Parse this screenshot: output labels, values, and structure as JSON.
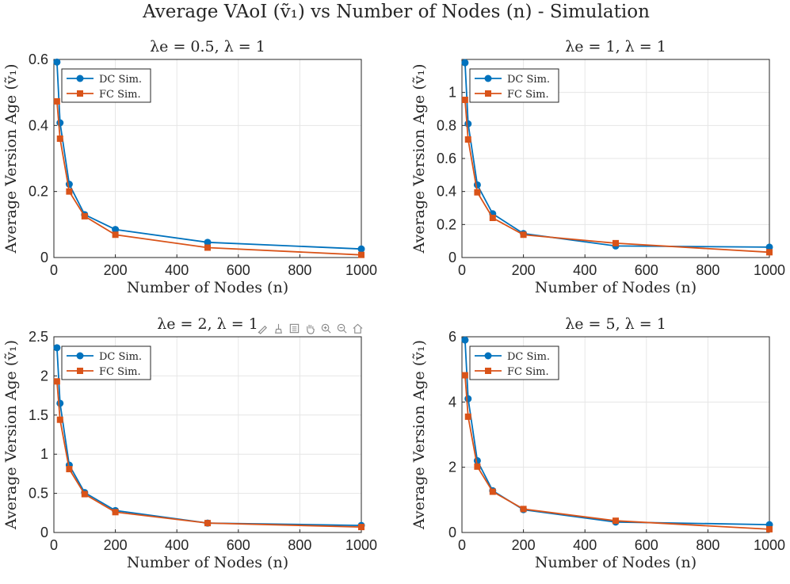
{
  "figure_title": "Average VAoI (ṽ₁) vs Number of Nodes (n) - Simulation",
  "toolbar": {
    "icons": [
      "brush-icon",
      "data-tips-icon",
      "legend-toggle-icon",
      "pan-hand-icon",
      "zoom-in-icon",
      "zoom-out-icon",
      "home-icon"
    ]
  },
  "colors": {
    "dc": "#0072BD",
    "fc": "#D95319",
    "grid": "#e6e6e6",
    "axis": "#262626"
  },
  "chart_data": [
    {
      "type": "line",
      "title": "λe = 0.5, λ = 1",
      "xlabel": "Number of Nodes (n)",
      "ylabel": "Average Version Age (ṽ₁)",
      "xlim": [
        0,
        1000
      ],
      "ylim": [
        0,
        0.6
      ],
      "xticks": [
        "0",
        "200",
        "400",
        "600",
        "800",
        "1000"
      ],
      "yticks": [
        "0",
        "0.2",
        "0.4",
        "0.6"
      ],
      "ytick_values": [
        0,
        0.2,
        0.4,
        0.6
      ],
      "grid": true,
      "legend_position": "top-left",
      "x": [
        10,
        20,
        50,
        100,
        200,
        500,
        1000
      ],
      "series": [
        {
          "name": "DC Sim.",
          "marker": "circle",
          "values": [
            0.592,
            0.408,
            0.222,
            0.13,
            0.085,
            0.046,
            0.026
          ]
        },
        {
          "name": "FC Sim.",
          "marker": "square",
          "values": [
            0.473,
            0.36,
            0.2,
            0.125,
            0.069,
            0.03,
            0.008
          ]
        }
      ]
    },
    {
      "type": "line",
      "title": "λe = 1, λ = 1",
      "xlabel": "Number of Nodes (n)",
      "ylabel": "Average Version Age (ṽ₁)",
      "xlim": [
        0,
        1000
      ],
      "ylim": [
        0,
        1.2
      ],
      "xticks": [
        "0",
        "200",
        "400",
        "600",
        "800",
        "1000"
      ],
      "yticks": [
        "0",
        "0.2",
        "0.4",
        "0.6",
        "0.8",
        "1"
      ],
      "ytick_values": [
        0,
        0.2,
        0.4,
        0.6,
        0.8,
        1.0
      ],
      "grid": true,
      "legend_position": "top-left",
      "x": [
        10,
        20,
        50,
        100,
        200,
        500,
        1000
      ],
      "series": [
        {
          "name": "DC Sim.",
          "marker": "circle",
          "values": [
            1.18,
            0.81,
            0.44,
            0.265,
            0.145,
            0.07,
            0.063
          ]
        },
        {
          "name": "FC Sim.",
          "marker": "square",
          "values": [
            0.955,
            0.715,
            0.395,
            0.24,
            0.138,
            0.087,
            0.032
          ]
        }
      ]
    },
    {
      "type": "line",
      "title": "λe = 2, λ = 1",
      "xlabel": "Number of Nodes (n)",
      "ylabel": "Average Version Age (ṽ₁)",
      "xlim": [
        0,
        1000
      ],
      "ylim": [
        0,
        2.5
      ],
      "xticks": [
        "0",
        "200",
        "400",
        "600",
        "800",
        "1000"
      ],
      "yticks": [
        "0",
        "0.5",
        "1",
        "1.5",
        "2",
        "2.5"
      ],
      "ytick_values": [
        0,
        0.5,
        1.0,
        1.5,
        2.0,
        2.5
      ],
      "grid": true,
      "legend_position": "top-left",
      "x": [
        10,
        20,
        50,
        100,
        200,
        500,
        1000
      ],
      "series": [
        {
          "name": "DC Sim.",
          "marker": "circle",
          "values": [
            2.36,
            1.65,
            0.86,
            0.51,
            0.28,
            0.12,
            0.09
          ]
        },
        {
          "name": "FC Sim.",
          "marker": "square",
          "values": [
            1.93,
            1.44,
            0.81,
            0.49,
            0.26,
            0.12,
            0.07
          ]
        }
      ]
    },
    {
      "type": "line",
      "title": "λe = 5, λ = 1",
      "xlabel": "Number of Nodes (n)",
      "ylabel": "Average Version Age (ṽ₁)",
      "xlim": [
        0,
        1000
      ],
      "ylim": [
        0,
        6
      ],
      "xticks": [
        "0",
        "200",
        "400",
        "600",
        "800",
        "1000"
      ],
      "yticks": [
        "0",
        "2",
        "4",
        "6"
      ],
      "ytick_values": [
        0,
        2,
        4,
        6
      ],
      "grid": true,
      "legend_position": "top-left",
      "x": [
        10,
        20,
        50,
        100,
        200,
        500,
        1000
      ],
      "series": [
        {
          "name": "DC Sim.",
          "marker": "circle",
          "values": [
            5.9,
            4.1,
            2.2,
            1.28,
            0.7,
            0.32,
            0.24
          ]
        },
        {
          "name": "FC Sim.",
          "marker": "square",
          "values": [
            4.82,
            3.55,
            2.02,
            1.25,
            0.72,
            0.36,
            0.1
          ]
        }
      ]
    }
  ]
}
